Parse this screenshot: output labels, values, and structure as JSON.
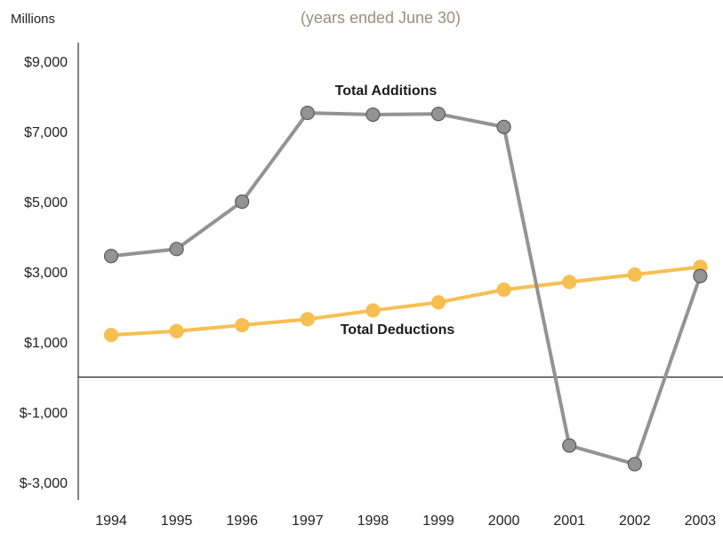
{
  "chart_data": {
    "type": "line",
    "subtitle": "(years ended June 30)",
    "y_unit_label": "Millions",
    "categories": [
      "1994",
      "1995",
      "1996",
      "1997",
      "1998",
      "1999",
      "2000",
      "2001",
      "2002",
      "2003"
    ],
    "y_ticks": [
      -3000,
      -1000,
      1000,
      3000,
      5000,
      7000,
      9000
    ],
    "y_tick_labels": [
      "$-3,000",
      "$-1,000",
      "$1,000",
      "$3,000",
      "$5,000",
      "$7,000",
      "$9,000"
    ],
    "ylim": [
      -3500,
      9500
    ],
    "grid": false,
    "series": [
      {
        "name": "Total Additions",
        "color": "#939393",
        "marker_edge": "#5a5a5a",
        "values": [
          3450,
          3650,
          5000,
          7530,
          7480,
          7500,
          7130,
          -1950,
          -2480,
          2880
        ]
      },
      {
        "name": "Total Deductions",
        "color": "#f7bf52",
        "marker_edge": "#f7bf52",
        "values": [
          1200,
          1310,
          1480,
          1650,
          1900,
          2130,
          2490,
          2710,
          2920,
          3140
        ]
      }
    ]
  }
}
